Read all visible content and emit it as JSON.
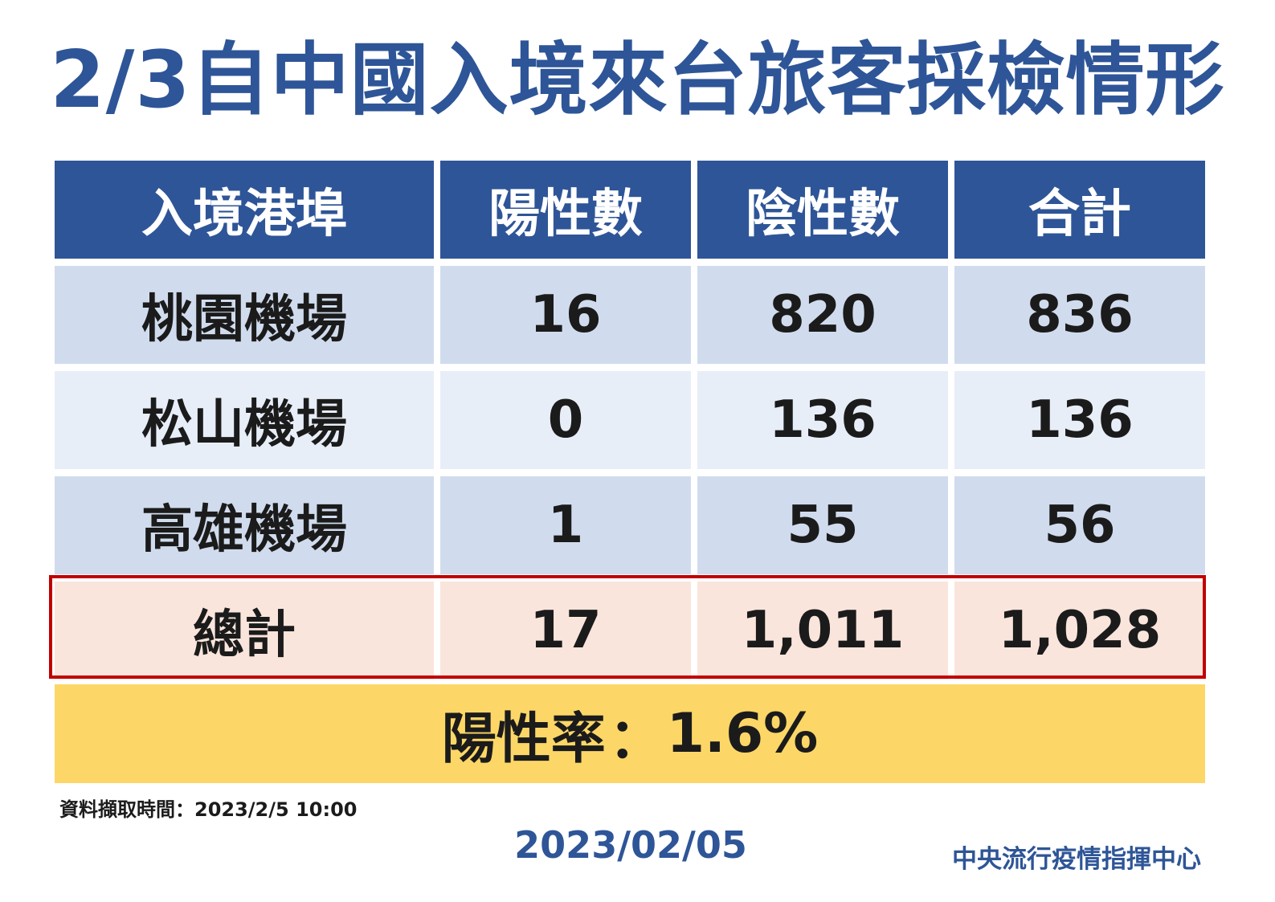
{
  "title": "2/3自中國入境來台旅客採檢情形",
  "table": {
    "headers": [
      "入境港埠",
      "陽性數",
      "陰性數",
      "合計"
    ],
    "rows": [
      {
        "port": "桃園機場",
        "positive": "16",
        "negative": "820",
        "total": "836"
      },
      {
        "port": "松山機場",
        "positive": "0",
        "negative": "136",
        "total": "136"
      },
      {
        "port": "高雄機場",
        "positive": "1",
        "negative": "55",
        "total": "56"
      }
    ],
    "total_row": {
      "label": "總計",
      "positive": "17",
      "negative": "1,011",
      "total": "1,028"
    }
  },
  "positivity": {
    "label": "陽性率",
    "separator": "：",
    "value": "1.6%"
  },
  "footnote": "資料擷取時間：2023/2/5 10:00",
  "date": "2023/02/05",
  "organization": "中央流行疫情指揮中心",
  "colors": {
    "title_blue": "#2e5597",
    "header_bg": "#2e5597",
    "row_dark_bg": "#d0dcee",
    "row_light_bg": "#e8eef8",
    "total_row_bg": "#fae5dc",
    "total_row_border": "#c00000",
    "rate_bg": "#fcd767"
  }
}
